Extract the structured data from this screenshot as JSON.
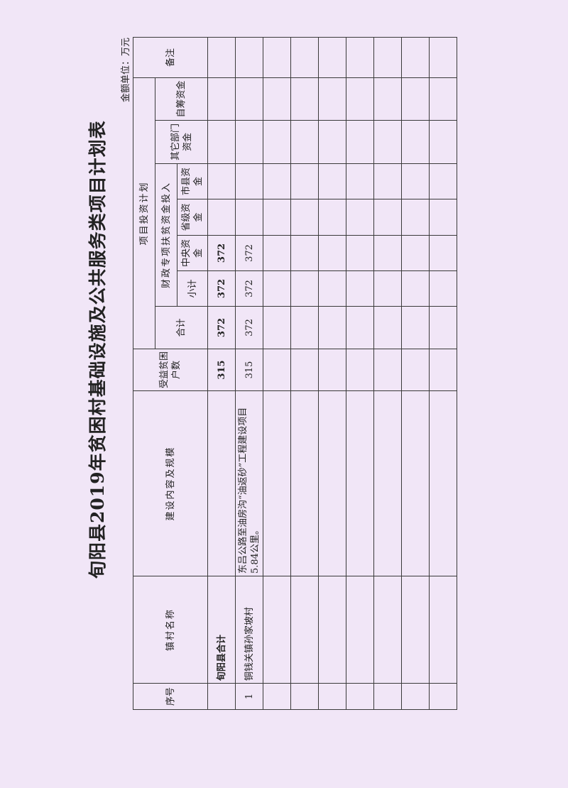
{
  "title": "旬阳县2019年贫困村基础设施及公共服务类项目计划表",
  "unit": "金额单位：万元",
  "headers": {
    "seq": "序号",
    "village": "镇村名称",
    "content": "建设内容及规模",
    "households": "受益贫困户数",
    "plan": "项目投资计划",
    "total": "合计",
    "fiscal": "财政专项扶贫资金投入",
    "subtotal": "小计",
    "central": "中央资金",
    "provincial": "省级资金",
    "city_county": "市县资金",
    "other_dept": "其它部门资金",
    "self_raised": "自筹资金",
    "remarks": "备注"
  },
  "rows": [
    {
      "seq": "",
      "village": "旬阳县合计",
      "content": "",
      "households": "315",
      "total": "372",
      "subtotal": "372",
      "central": "372",
      "provincial": "",
      "city_county": "",
      "other_dept": "",
      "self_raised": "",
      "remarks": ""
    },
    {
      "seq": "1",
      "village": "铜钱关镇孙家坡村",
      "content": "东吕公路至油房沟“油返砂”工程建设项目5.84公里。",
      "households": "315",
      "total": "372",
      "subtotal": "372",
      "central": "372",
      "provincial": "",
      "city_county": "",
      "other_dept": "",
      "self_raised": "",
      "remarks": ""
    }
  ],
  "empty_row_count": 7
}
